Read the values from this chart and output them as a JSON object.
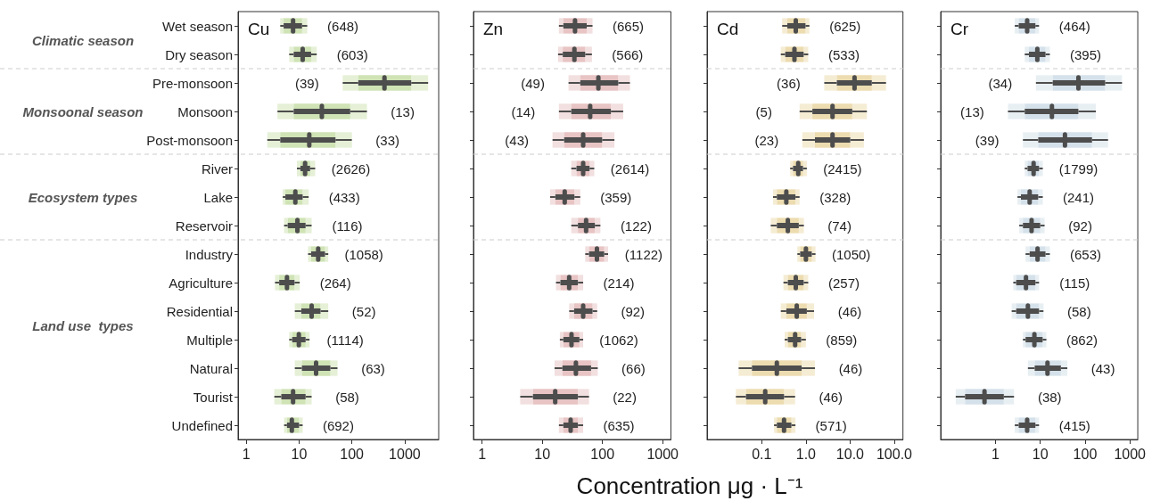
{
  "chart_data": [
    {
      "type": "box",
      "orientation": "horizontal",
      "title": "Cu",
      "xlabel": "Concentration μg · L⁻¹",
      "log": "x",
      "grid": false,
      "color": "#cfe3b5",
      "xlim": [
        0.7,
        4400
      ],
      "xticks": [
        1,
        10,
        100,
        1000
      ],
      "categories": [
        "Wet season",
        "Dry season",
        "Pre-monsoon",
        "Monsoon",
        "Post-monsoon",
        "River",
        "Lake",
        "Reservoir",
        "Industry",
        "Agriculture",
        "Residential",
        "Multiple",
        "Natural",
        "Tourist",
        "Undefined"
      ],
      "boxes": [
        {
          "low": 4.4,
          "q1": 5.1,
          "median": 7.7,
          "q3": 11.4,
          "high": 14.3
        },
        {
          "low": 6.5,
          "q1": 7.9,
          "median": 11.7,
          "q3": 16.9,
          "high": 21.6
        },
        {
          "low": 67,
          "q1": 132,
          "median": 414,
          "q3": 1330,
          "high": 2780
        },
        {
          "low": 3.9,
          "q1": 7.9,
          "median": 27,
          "q3": 93,
          "high": 193
        },
        {
          "low": 2.5,
          "q1": 4.4,
          "median": 15.6,
          "q3": 49,
          "high": 100
        },
        {
          "low": 9.1,
          "q1": 10.6,
          "median": 13,
          "q3": 16.2,
          "high": 20.2
        },
        {
          "low": 4.9,
          "q1": 5.5,
          "median": 8.5,
          "q3": 11.7,
          "high": 15.2
        },
        {
          "low": 5.2,
          "q1": 6.1,
          "median": 9.3,
          "q3": 13.3,
          "high": 17.3
        },
        {
          "low": 14.8,
          "q1": 16.9,
          "median": 23,
          "q3": 31,
          "high": 35.7
        },
        {
          "low": 3.5,
          "q1": 4.2,
          "median": 5.9,
          "q3": 8.2,
          "high": 10.3
        },
        {
          "low": 8.3,
          "q1": 11,
          "median": 17.3,
          "q3": 25.5,
          "high": 35.7
        },
        {
          "low": 6.5,
          "q1": 7.4,
          "median": 9.9,
          "q3": 13.3,
          "high": 15.8
        },
        {
          "low": 8.3,
          "q1": 11.3,
          "median": 21,
          "q3": 39.2,
          "high": 53.4
        },
        {
          "low": 3.4,
          "q1": 4.6,
          "median": 7.7,
          "q3": 13.3,
          "high": 17.3
        },
        {
          "low": 5.2,
          "q1": 5.9,
          "median": 7.3,
          "q3": 10,
          "high": 11.7
        }
      ],
      "value_labels": [
        "(648)",
        "(603)",
        "(39)",
        "(13)",
        "(33)",
        "(2626)",
        "(433)",
        "(116)",
        "(1058)",
        "(264)",
        "(52)",
        "(1114)",
        "(63)",
        "(58)",
        "(692)"
      ],
      "annotations": [
        "Climatic season",
        "Monsoonal season",
        "Ecosystem types",
        "Land use  types"
      ]
    },
    {
      "type": "box",
      "orientation": "horizontal",
      "title": "Zn",
      "log": "x",
      "grid": false,
      "tick_labels": "x",
      "color": "#e8c4c4",
      "xlim": [
        0.72,
        1370
      ],
      "xticks": [
        1,
        10,
        100,
        1000
      ],
      "categories": [
        null,
        null,
        null,
        null,
        null,
        null,
        null,
        null,
        null,
        null,
        null,
        null,
        null,
        null,
        null
      ],
      "boxes": [
        {
          "low": 18.9,
          "q1": 22.4,
          "median": 35,
          "q3": 54.7,
          "high": 68.4
        },
        {
          "low": 18.3,
          "q1": 21.9,
          "median": 34.2,
          "q3": 51.7,
          "high": 66.8
        },
        {
          "low": 27.3,
          "q1": 42.8,
          "median": 85.5,
          "q3": 183,
          "high": 286
        },
        {
          "low": 18.9,
          "q1": 30.3,
          "median": 62.5,
          "q3": 138,
          "high": 221
        },
        {
          "low": 14.8,
          "q1": 23.1,
          "median": 47.8,
          "q3": 98.9,
          "high": 158
        },
        {
          "low": 30.3,
          "q1": 37,
          "median": 47.8,
          "q3": 61.1,
          "high": 73.1
        },
        {
          "low": 13.5,
          "q1": 16.5,
          "median": 23.6,
          "q3": 34.2,
          "high": 42.8
        },
        {
          "low": 30.3,
          "q1": 39.1,
          "median": 53.5,
          "q3": 74.8,
          "high": 92.5
        },
        {
          "low": 51.7,
          "q1": 59.8,
          "median": 80.9,
          "q3": 107,
          "high": 124
        },
        {
          "low": 16.9,
          "q1": 20,
          "median": 28,
          "q3": 39.1,
          "high": 47.8
        },
        {
          "low": 28,
          "q1": 33.8,
          "median": 47.8,
          "q3": 68.4,
          "high": 81.8
        },
        {
          "low": 19.6,
          "q1": 22.4,
          "median": 30.6,
          "q3": 41.4,
          "high": 47.8
        },
        {
          "low": 16,
          "q1": 21.6,
          "median": 36.2,
          "q3": 64.7,
          "high": 83.6
        },
        {
          "low": 4.3,
          "q1": 7,
          "median": 16.4,
          "q3": 39.1,
          "high": 59.8
        },
        {
          "low": 18.9,
          "q1": 22.4,
          "median": 29.6,
          "q3": 39.1,
          "high": 47.8
        }
      ],
      "value_labels": [
        "(665)",
        "(566)",
        "(49)",
        "(14)",
        "(43)",
        "(2614)",
        "(359)",
        "(122)",
        "(1122)",
        "(214)",
        "(92)",
        "(1062)",
        "(66)",
        "(22)",
        "(635)"
      ]
    },
    {
      "type": "box",
      "orientation": "horizontal",
      "title": "Cd",
      "log": "x",
      "grid": false,
      "tick_labels": "x",
      "color": "#ecdcb0",
      "xlim": [
        0.0058,
        157
      ],
      "xticks": [
        {
          "value": 0.1,
          "label": "0.1"
        },
        {
          "value": 1,
          "label": "1.0"
        },
        {
          "value": 10,
          "label": "10.0"
        },
        {
          "value": 100,
          "label": "100.0"
        }
      ],
      "categories": [
        null,
        null,
        null,
        null,
        null,
        null,
        null,
        null,
        null,
        null,
        null,
        null,
        null,
        null,
        null
      ],
      "boxes": [
        {
          "low": 0.29,
          "q1": 0.38,
          "median": 0.59,
          "q3": 0.98,
          "high": 1.2
        },
        {
          "low": 0.27,
          "q1": 0.34,
          "median": 0.55,
          "q3": 0.89,
          "high": 1.13
        },
        {
          "low": 2.6,
          "q1": 5,
          "median": 12.6,
          "q3": 31,
          "high": 65
        },
        {
          "low": 0.72,
          "q1": 1.4,
          "median": 4,
          "q3": 11.2,
          "high": 24
        },
        {
          "low": 0.83,
          "q1": 1.6,
          "median": 4,
          "q3": 10.1,
          "high": 20.5
        },
        {
          "low": 0.44,
          "q1": 0.51,
          "median": 0.67,
          "q3": 0.86,
          "high": 1.05
        },
        {
          "low": 0.18,
          "q1": 0.22,
          "median": 0.36,
          "q3": 0.58,
          "high": 0.72
        },
        {
          "low": 0.16,
          "q1": 0.22,
          "median": 0.39,
          "q3": 0.69,
          "high": 0.9
        },
        {
          "low": 0.64,
          "q1": 0.74,
          "median": 1,
          "q3": 1.36,
          "high": 1.65
        },
        {
          "low": 0.31,
          "q1": 0.39,
          "median": 0.59,
          "q3": 0.89,
          "high": 1.13
        },
        {
          "low": 0.27,
          "q1": 0.36,
          "median": 0.62,
          "q3": 1.05,
          "high": 1.53
        },
        {
          "low": 0.33,
          "q1": 0.39,
          "median": 0.57,
          "q3": 0.78,
          "high": 1
        },
        {
          "low": 0.03,
          "q1": 0.06,
          "median": 0.22,
          "q3": 0.8,
          "high": 1.6
        },
        {
          "low": 0.026,
          "q1": 0.044,
          "median": 0.12,
          "q3": 0.32,
          "high": 0.57
        },
        {
          "low": 0.19,
          "q1": 0.22,
          "median": 0.32,
          "q3": 0.47,
          "high": 0.58
        }
      ],
      "value_labels": [
        "(625)",
        "(533)",
        "(36)",
        "(5)",
        "(23)",
        "(2415)",
        "(328)",
        "(74)",
        "(1050)",
        "(257)",
        "(46)",
        "(859)",
        "(46)",
        "(46)",
        "(571)"
      ]
    },
    {
      "type": "box",
      "orientation": "horizontal",
      "title": "Cr",
      "log": "x",
      "grid": false,
      "tick_labels": "x",
      "color": "#d5e1ea",
      "xlim": [
        0.06,
        1500
      ],
      "xticks": [
        1,
        10,
        100,
        1000
      ],
      "categories": [
        null,
        null,
        null,
        null,
        null,
        null,
        null,
        null,
        null,
        null,
        null,
        null,
        null,
        null,
        null
      ],
      "boxes": [
        {
          "low": 2.7,
          "q1": 3.3,
          "median": 5.1,
          "q3": 7.8,
          "high": 9.4
        },
        {
          "low": 4.5,
          "q1": 5.6,
          "median": 8.6,
          "q3": 13.1,
          "high": 16.4
        },
        {
          "low": 8,
          "q1": 19,
          "median": 71,
          "q3": 281,
          "high": 668
        },
        {
          "low": 1.9,
          "q1": 4.5,
          "median": 18.2,
          "q3": 71,
          "high": 174
        },
        {
          "low": 4.1,
          "q1": 9,
          "median": 35.6,
          "q3": 143,
          "high": 326
        },
        {
          "low": 4.5,
          "q1": 5.2,
          "median": 7.1,
          "q3": 9.4,
          "high": 11.4
        },
        {
          "low": 3.1,
          "q1": 3.7,
          "median": 5.8,
          "q3": 9,
          "high": 11.4
        },
        {
          "low": 3.4,
          "q1": 4.1,
          "median": 6.4,
          "q3": 10,
          "high": 12.5
        },
        {
          "low": 4.7,
          "q1": 5.8,
          "median": 8.7,
          "q3": 13.1,
          "high": 16.4
        },
        {
          "low": 2.5,
          "q1": 2.9,
          "median": 4.8,
          "q3": 7.8,
          "high": 9.4
        },
        {
          "low": 2.3,
          "q1": 2.9,
          "median": 5.3,
          "q3": 9.4,
          "high": 11.8
        },
        {
          "low": 4.1,
          "q1": 4.7,
          "median": 7.4,
          "q3": 11.3,
          "high": 13.7
        },
        {
          "low": 5.3,
          "q1": 7.5,
          "median": 14.5,
          "q3": 28.9,
          "high": 40.2
        },
        {
          "low": 0.13,
          "q1": 0.21,
          "median": 0.57,
          "q3": 1.54,
          "high": 2.6
        },
        {
          "low": 2.7,
          "q1": 3.3,
          "median": 5.1,
          "q3": 7.8,
          "high": 9.4
        }
      ],
      "value_labels": [
        "(464)",
        "(395)",
        "(34)",
        "(13)",
        "(39)",
        "(1799)",
        "(241)",
        "(92)",
        "(653)",
        "(115)",
        "(58)",
        "(862)",
        "(43)",
        "(38)",
        "(415)"
      ]
    }
  ]
}
